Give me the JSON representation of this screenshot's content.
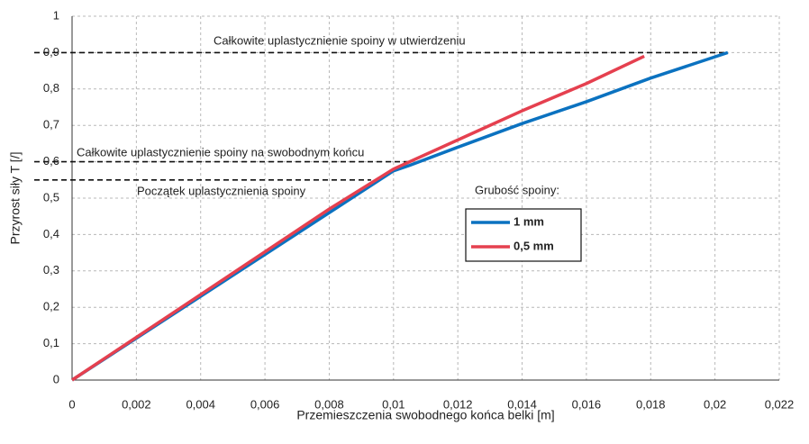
{
  "chart_data": {
    "type": "line",
    "x_label": "Przemieszczenia swobodnego końca belki [m]",
    "y_label": "Przyrost siły T [/]",
    "xlim": [
      0,
      0.022
    ],
    "ylim": [
      0,
      1
    ],
    "xticks": [
      0,
      {
        "value": 0.002,
        "label": "0,002"
      },
      {
        "value": 0.004,
        "label": "0,004"
      },
      {
        "value": 0.006,
        "label": "0,006"
      },
      {
        "value": 0.008,
        "label": "0,008"
      },
      {
        "value": 0.01,
        "label": "0,01"
      },
      {
        "value": 0.012,
        "label": "0,012"
      },
      {
        "value": 0.014,
        "label": "0,014"
      },
      {
        "value": 0.016,
        "label": "0,016"
      },
      {
        "value": 0.018,
        "label": "0,018"
      },
      {
        "value": 0.02,
        "label": "0,02"
      },
      {
        "value": 0.022,
        "label": "0,022"
      }
    ],
    "yticks": [
      0,
      {
        "value": 0.1,
        "label": "0,1"
      },
      {
        "value": 0.2,
        "label": "0,2"
      },
      {
        "value": 0.3,
        "label": "0,3"
      },
      {
        "value": 0.4,
        "label": "0,4"
      },
      {
        "value": 0.5,
        "label": "0,5"
      },
      {
        "value": 0.6,
        "label": "0,6"
      },
      {
        "value": 0.7,
        "label": "0,7"
      },
      {
        "value": 0.8,
        "label": "0,8"
      },
      {
        "value": 0.9,
        "label": "0,9"
      },
      1
    ],
    "grid": true,
    "legend_title": "Grubość spoiny:",
    "series": [
      {
        "name": "1 mm",
        "color": "#0b72c0",
        "x": [
          0,
          0.004,
          0.008,
          0.01,
          0.0105,
          0.012,
          0.014,
          0.016,
          0.018,
          0.0204
        ],
        "values": [
          0,
          0.23,
          0.46,
          0.575,
          0.59,
          0.64,
          0.705,
          0.765,
          0.83,
          0.9
        ]
      },
      {
        "name": "0,5 mm",
        "color": "#e5404f",
        "x": [
          0,
          0.004,
          0.008,
          0.01,
          0.012,
          0.014,
          0.016,
          0.0178
        ],
        "values": [
          0,
          0.235,
          0.47,
          0.58,
          0.66,
          0.74,
          0.815,
          0.89
        ]
      }
    ],
    "annotations": [
      {
        "text": "Całkowite uplastycznienie spoiny w utwierdzeniu",
        "y": 0.9,
        "x_end": 0.0204
      },
      {
        "text": "Całkowite uplastycznienie spoiny na swobodnym końcu",
        "y": 0.6,
        "x_end": 0.0105
      },
      {
        "text": "Początek uplastycznienia spoiny",
        "y": 0.55,
        "x_end": 0.0093
      }
    ]
  }
}
